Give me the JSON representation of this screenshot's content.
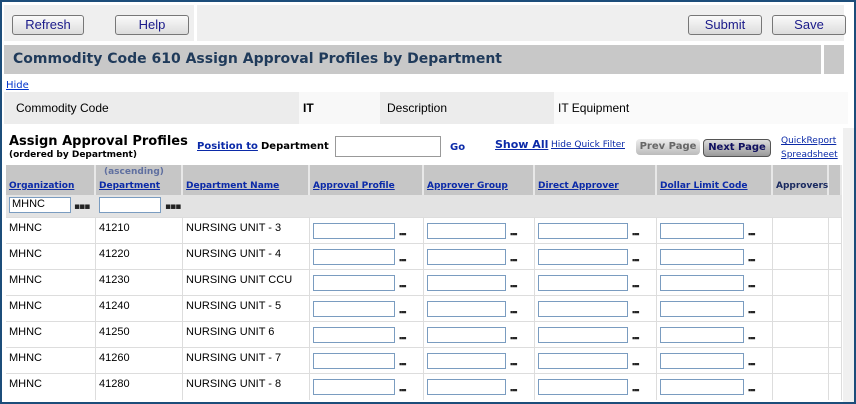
{
  "toolbar": {
    "refresh": "Refresh",
    "help": "Help",
    "submit": "Submit",
    "save": "Save"
  },
  "title": "Commodity Code 610 Assign Approval Profiles by Department",
  "hide_link": "Hide",
  "info": {
    "code_label": "Commodity Code",
    "code_value": "IT",
    "desc_label": "Description",
    "desc_value": "IT Equipment"
  },
  "section": {
    "title": "Assign Approval Profiles",
    "subtitle": "(ordered by Department)",
    "position_to": "Position to",
    "position_field": "Department",
    "go": "Go",
    "show_all": "Show All",
    "hide_filter": "Hide Quick Filter",
    "prev": "Prev Page",
    "next": "Next Page",
    "quickreport": "QuickReport",
    "spreadsheet": "Spreadsheet"
  },
  "columns": {
    "org": "Organization",
    "sort_note": "(ascending)",
    "dept": "Department",
    "name": "Department Name",
    "profile": "Approval Profile",
    "group": "Approver Group",
    "direct": "Direct Approver",
    "dollar": "Dollar Limit Code",
    "approvers": "Approvers"
  },
  "filter": {
    "org": "MHNC",
    "dept": ""
  },
  "rows": [
    {
      "org": "MHNC",
      "dept": "41210",
      "name": "NURSING UNIT - 3"
    },
    {
      "org": "MHNC",
      "dept": "41220",
      "name": "NURSING UNIT - 4"
    },
    {
      "org": "MHNC",
      "dept": "41230",
      "name": "NURSING UNIT CCU"
    },
    {
      "org": "MHNC",
      "dept": "41240",
      "name": "NURSING UNIT - 5"
    },
    {
      "org": "MHNC",
      "dept": "41250",
      "name": "NURSING UNIT 6"
    },
    {
      "org": "MHNC",
      "dept": "41260",
      "name": "NURSING UNIT - 7"
    },
    {
      "org": "MHNC",
      "dept": "41280",
      "name": "NURSING UNIT - 8"
    }
  ]
}
